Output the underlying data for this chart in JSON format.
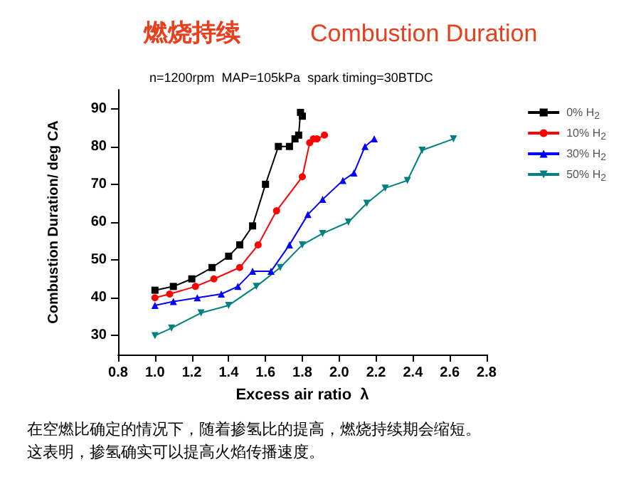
{
  "chart_data": {
    "type": "line",
    "title": "燃烧持续",
    "subtitle": "Combustion Duration",
    "annotations": [
      "n=1200rpm  MAP=105kPa  spark timing=30BTDC",
      "在空燃比确定的情况下，随着掺氢比的提高，燃烧持续期会缩短。",
      "这表明，掺氢确实可以提高火焰传播速度。"
    ],
    "xlabel": "Excess air ratio  λ",
    "ylabel": "Combustion Duration/ deg CA",
    "xlim": [
      0.8,
      2.8
    ],
    "xticks": [
      0.8,
      {
        "value": 1,
        "label": "1.0"
      },
      1.2,
      1.4,
      1.6,
      1.8,
      {
        "value": 2,
        "label": "2.0"
      },
      2.2,
      2.4,
      2.6,
      2.8
    ],
    "ylim": [
      25,
      95
    ],
    "yticks": [
      30,
      40,
      50,
      60,
      70,
      80,
      90
    ],
    "grid": false,
    "legend": "top right",
    "line_style": "solid",
    "series": [
      {
        "name": "0% H$_{2}$",
        "color": "#000000",
        "marker": "square",
        "x": [
          1.0,
          1.1,
          1.2,
          1.31,
          1.4,
          1.46,
          1.53,
          1.6,
          1.67,
          1.73,
          1.76,
          1.78,
          1.79,
          1.8
        ],
        "values": [
          42,
          43,
          45,
          48,
          51,
          54,
          59,
          70,
          80,
          80,
          82,
          83,
          89,
          88
        ]
      },
      {
        "name": "10% H$_{2}$",
        "color": "#ff0000",
        "marker": "circle",
        "x": [
          1.0,
          1.08,
          1.22,
          1.32,
          1.46,
          1.56,
          1.66,
          1.8,
          1.84,
          1.86,
          1.88,
          1.92
        ],
        "values": [
          40,
          41,
          43,
          45,
          48,
          54,
          63,
          72,
          81,
          82,
          82,
          83
        ]
      },
      {
        "name": "30% H$_{2}$",
        "color": "#0000ff",
        "marker": "triangle",
        "x": [
          1.0,
          1.1,
          1.23,
          1.36,
          1.45,
          1.53,
          1.63,
          1.73,
          1.83,
          1.91,
          2.02,
          2.08,
          2.14,
          2.19
        ],
        "values": [
          38,
          39,
          40,
          41,
          43,
          47,
          47,
          54,
          62,
          66,
          71,
          73,
          80,
          82
        ]
      },
      {
        "name": "50% H$_{2}$",
        "color": "#008080",
        "marker": "triangle",
        "x": [
          1.0,
          1.09,
          1.25,
          1.4,
          1.55,
          1.68,
          1.8,
          1.91,
          2.05,
          2.15,
          2.25,
          2.37,
          2.45,
          2.62
        ],
        "values": [
          30,
          32,
          36,
          38,
          43,
          48,
          54,
          57,
          60,
          65,
          69,
          71,
          79,
          82
        ]
      }
    ]
  }
}
